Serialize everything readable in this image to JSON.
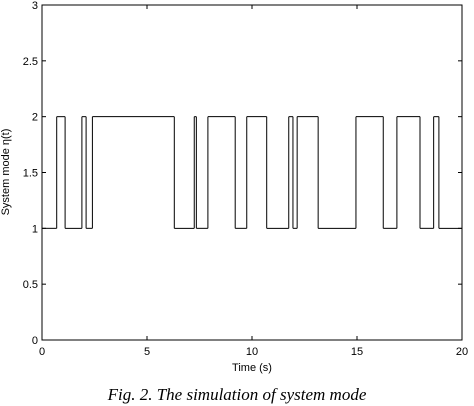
{
  "chart_data": {
    "type": "step",
    "xlabel": "Time (s)",
    "ylabel": "System mode η(t)",
    "caption": "Fig. 2. The simulation of system mode",
    "x": [
      0,
      0.7,
      1.1,
      1.9,
      2.1,
      2.4,
      6.3,
      7.25,
      7.35,
      7.9,
      9.2,
      9.75,
      10.7,
      11.75,
      11.95,
      12.15,
      13.15,
      14.95,
      16.25,
      16.9,
      18,
      18.65,
      18.9,
      20
    ],
    "values": [
      1,
      2,
      1,
      2,
      1,
      2,
      1,
      2,
      1,
      2,
      1,
      2,
      1,
      2,
      1,
      2,
      1,
      2,
      1,
      2,
      1,
      2,
      1,
      1
    ],
    "color": "#000000",
    "xlim": [
      0,
      20
    ],
    "xticks": [
      0,
      5,
      10,
      15,
      20
    ],
    "ylim": [
      0,
      3
    ],
    "yticks": [
      0,
      0.5,
      1,
      1.5,
      2,
      2.5,
      3
    ]
  }
}
